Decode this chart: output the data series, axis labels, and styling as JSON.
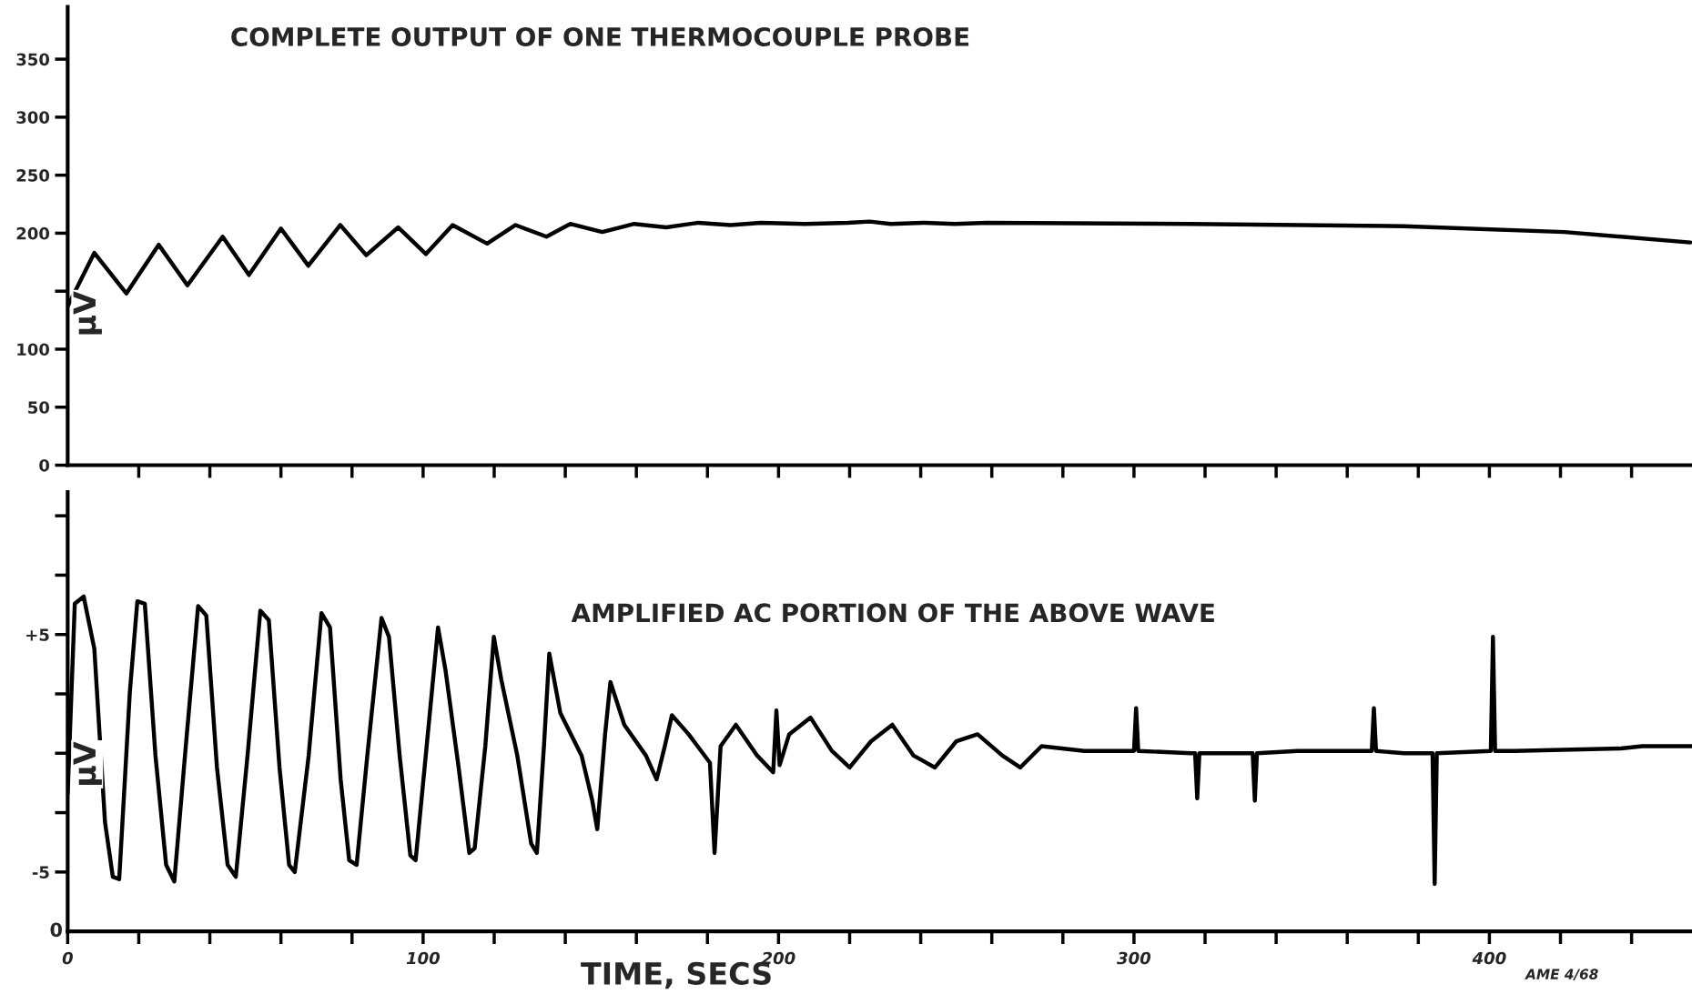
{
  "chart_data": [
    {
      "type": "line",
      "title": "COMPLETE OUTPUT OF ONE THERMOCOUPLE PROBE",
      "ylabel": "μV",
      "tick_labels": "y",
      "grid": false,
      "legend": false,
      "xlim": [
        0,
        457
      ],
      "ylim": [
        0,
        395
      ],
      "xticks": [
        {
          "value": 20,
          "label": null
        },
        {
          "value": 40,
          "label": null
        },
        {
          "value": 60,
          "label": null
        },
        {
          "value": 80,
          "label": null
        },
        100,
        {
          "value": 120,
          "label": null
        },
        {
          "value": 140,
          "label": null
        },
        {
          "value": 160,
          "label": null
        },
        {
          "value": 180,
          "label": null
        },
        200,
        {
          "value": 220,
          "label": null
        },
        {
          "value": 240,
          "label": null
        },
        {
          "value": 260,
          "label": null
        },
        {
          "value": 280,
          "label": null
        },
        300,
        {
          "value": 320,
          "label": null
        },
        {
          "value": 340,
          "label": null
        },
        {
          "value": 360,
          "label": null
        },
        {
          "value": 380,
          "label": null
        },
        400,
        {
          "value": 420,
          "label": null
        },
        {
          "value": 440,
          "label": null
        }
      ],
      "yticks": [
        0,
        50,
        100,
        {
          "value": 150,
          "label": null
        },
        200,
        250,
        300,
        350
      ],
      "series": [
        {
          "color": "#000000",
          "x": [
            0,
            7.5,
            16.5,
            25.6,
            33.7,
            43.6,
            51,
            60,
            67.7,
            76.7,
            84,
            93,
            100.8,
            108.3,
            118,
            126,
            134.7,
            141.4,
            150.4,
            159.4,
            168.4,
            177.4,
            186.5,
            195,
            207.5,
            219.5,
            225.6,
            231.6,
            240.6,
            249.6,
            258.6,
            315.8,
            376,
            421,
            456.5
          ],
          "values": [
            137,
            183,
            148,
            190,
            155,
            197,
            164,
            204,
            172,
            207,
            181,
            205,
            182,
            207,
            191,
            207,
            197,
            208,
            201,
            208,
            205,
            209,
            207,
            209,
            208,
            209,
            210,
            208,
            209,
            208,
            209,
            208,
            206,
            201,
            192
          ]
        }
      ]
    },
    {
      "type": "line",
      "title": "AMPLIFIED AC PORTION OF THE ABOVE WAVE",
      "xlabel": "TIME, SECS",
      "ylabel": "μV",
      "grid": false,
      "legend": false,
      "annotations": [
        "0",
        "AME 4/68"
      ],
      "xlim": [
        0,
        457
      ],
      "ylim": [
        -7.5,
        11
      ],
      "xticks": [
        0,
        {
          "value": 20,
          "label": null
        },
        {
          "value": 40,
          "label": null
        },
        {
          "value": 60,
          "label": null
        },
        {
          "value": 80,
          "label": null
        },
        100,
        {
          "value": 120,
          "label": null
        },
        {
          "value": 140,
          "label": null
        },
        {
          "value": 160,
          "label": null
        },
        {
          "value": 180,
          "label": null
        },
        200,
        {
          "value": 220,
          "label": null
        },
        {
          "value": 240,
          "label": null
        },
        {
          "value": 260,
          "label": null
        },
        {
          "value": 280,
          "label": null
        },
        300,
        {
          "value": 320,
          "label": null
        },
        {
          "value": 340,
          "label": null
        },
        {
          "value": 360,
          "label": null
        },
        {
          "value": 380,
          "label": null
        },
        400,
        {
          "value": 420,
          "label": null
        },
        {
          "value": 440,
          "label": null
        }
      ],
      "yticks": [
        {
          "value": -5,
          "label": "-5"
        },
        {
          "value": -2.5,
          "label": null
        },
        {
          "value": 0,
          "label": null
        },
        {
          "value": 2.5,
          "label": null
        },
        {
          "value": 5,
          "label": "+5"
        },
        {
          "value": 7.5,
          "label": null
        },
        {
          "value": 10,
          "label": null
        }
      ],
      "series": [
        {
          "color": "#000000",
          "x": [
            0,
            2,
            4.5,
            7.5,
            10.5,
            12.7,
            14.5,
            17.5,
            19.6,
            21.7,
            24.7,
            27.7,
            30,
            33,
            36.7,
            39,
            42,
            45,
            47.3,
            50.6,
            54.2,
            56.6,
            59.6,
            62.3,
            63.9,
            67.8,
            71.4,
            73.8,
            76.8,
            79.2,
            81.3,
            84.3,
            88.3,
            90.4,
            93.4,
            96.4,
            97.9,
            101,
            104.2,
            106.3,
            110,
            113,
            114.5,
            117.5,
            119.9,
            122,
            126.5,
            130.4,
            132,
            134,
            135.5,
            138.6,
            144.6,
            147.6,
            149,
            151.2,
            152.7,
            156.6,
            162.7,
            165.7,
            168,
            170,
            174.7,
            180.7,
            182,
            183.7,
            188,
            194,
            198.5,
            199.4,
            200.3,
            203,
            209,
            215,
            220,
            226,
            232,
            238,
            244,
            250,
            256,
            263,
            268,
            274,
            286,
            300,
            300.6,
            301.2,
            316,
            317.2,
            317.8,
            318.4,
            333.4,
            334,
            334.6,
            346,
            366.9,
            367.5,
            368.1,
            376,
            384,
            384.6,
            385.2,
            400.4,
            401,
            401.6,
            407,
            437,
            443,
            457
          ],
          "values": [
            -1.7,
            6.3,
            6.6,
            4.4,
            -2.9,
            -5.2,
            -5.3,
            2.6,
            6.4,
            6.3,
            -0.1,
            -4.7,
            -5.4,
            -0.1,
            6.2,
            5.8,
            -0.6,
            -4.7,
            -5.2,
            -0.1,
            6.0,
            5.6,
            -0.6,
            -4.7,
            -5.0,
            -0.1,
            5.9,
            5.3,
            -1.1,
            -4.5,
            -4.7,
            -0.1,
            5.7,
            4.9,
            -0.1,
            -4.3,
            -4.5,
            0.3,
            5.3,
            3.5,
            -0.6,
            -4.2,
            -4.0,
            0.3,
            4.9,
            3.1,
            -0.1,
            -3.8,
            -4.2,
            0.3,
            4.2,
            1.7,
            -0.1,
            -2.0,
            -3.2,
            0.8,
            3.0,
            1.2,
            -0.1,
            -1.1,
            0.3,
            1.6,
            0.8,
            -0.4,
            -4.2,
            0.3,
            1.2,
            -0.1,
            -0.8,
            1.8,
            -0.5,
            0.8,
            1.5,
            0.1,
            -0.6,
            0.5,
            1.2,
            -0.1,
            -0.6,
            0.5,
            0.8,
            -0.1,
            -0.6,
            0.3,
            0.1,
            0.1,
            1.9,
            0.1,
            0,
            0,
            -1.9,
            0,
            0,
            -2.0,
            0,
            0.1,
            0.1,
            1.9,
            0.1,
            0,
            0,
            -5.5,
            0,
            0.1,
            4.9,
            0.1,
            0.1,
            0.2,
            0.3,
            0.3
          ]
        }
      ]
    }
  ]
}
